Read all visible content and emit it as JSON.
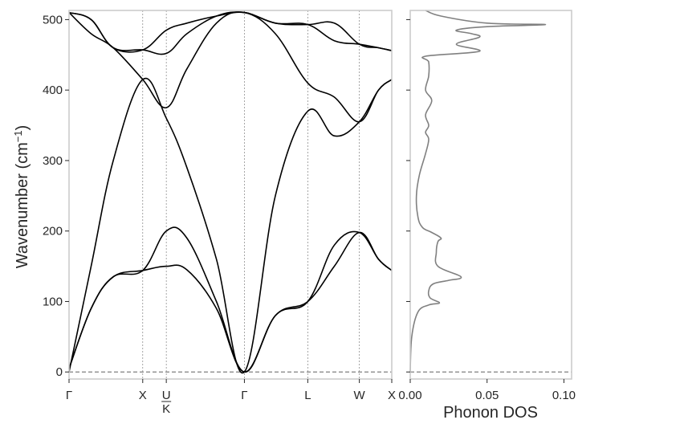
{
  "chart_data": [
    {
      "type": "line",
      "ylabel": "Wavenumber (cm⁻¹)",
      "ylim": [
        -10,
        513
      ],
      "yticks": [
        0,
        100,
        200,
        300,
        400,
        500
      ],
      "grid": false,
      "high_symmetry_points": [
        {
          "label": "Γ",
          "x": 0
        },
        {
          "label": "X",
          "x": 1
        },
        {
          "label": "U|K",
          "x": 1.32
        },
        {
          "label": "Γ",
          "x": 2.38
        },
        {
          "label": "L",
          "x": 3.24
        },
        {
          "label": "W",
          "x": 3.94
        },
        {
          "label": "X",
          "x": 4.38
        }
      ],
      "reference_line_y": 0,
      "bands": [
        {
          "points": [
            [
              0,
              5
            ],
            [
              0.3,
              90
            ],
            [
              0.6,
              135
            ],
            [
              1,
              144
            ],
            [
              1.32,
              200
            ],
            [
              1.6,
              190
            ],
            [
              2.0,
              100
            ],
            [
              2.38,
              0
            ],
            [
              2.8,
              80
            ],
            [
              3.24,
              100
            ],
            [
              3.6,
              180
            ],
            [
              3.94,
              198
            ],
            [
              4.2,
              160
            ],
            [
              4.38,
              144
            ]
          ]
        },
        {
          "points": [
            [
              0,
              5
            ],
            [
              0.3,
              90
            ],
            [
              0.6,
              135
            ],
            [
              1,
              144
            ],
            [
              1.32,
              150
            ],
            [
              1.6,
              145
            ],
            [
              2.0,
              90
            ],
            [
              2.38,
              0
            ],
            [
              2.8,
              80
            ],
            [
              3.24,
              100
            ],
            [
              3.6,
              150
            ],
            [
              3.94,
              198
            ],
            [
              4.2,
              160
            ],
            [
              4.38,
              144
            ]
          ]
        },
        {
          "points": [
            [
              0,
              0
            ],
            [
              0.3,
              150
            ],
            [
              0.6,
              300
            ],
            [
              1,
              415
            ],
            [
              1.32,
              360
            ],
            [
              1.6,
              290
            ],
            [
              2.0,
              160
            ],
            [
              2.38,
              0
            ],
            [
              2.8,
              250
            ],
            [
              3.24,
              370
            ],
            [
              3.6,
              335
            ],
            [
              3.94,
              355
            ],
            [
              4.2,
              400
            ],
            [
              4.38,
              415
            ]
          ]
        },
        {
          "points": [
            [
              0,
              510
            ],
            [
              0.3,
              480
            ],
            [
              0.6,
              460
            ],
            [
              1,
              415
            ],
            [
              1.32,
              375
            ],
            [
              1.6,
              430
            ],
            [
              2.0,
              495
            ],
            [
              2.38,
              510
            ],
            [
              2.8,
              480
            ],
            [
              3.24,
              410
            ],
            [
              3.6,
              390
            ],
            [
              3.94,
              355
            ],
            [
              4.2,
              400
            ],
            [
              4.38,
              415
            ]
          ]
        },
        {
          "points": [
            [
              0,
              510
            ],
            [
              0.3,
              500
            ],
            [
              0.6,
              460
            ],
            [
              1,
              457
            ],
            [
              1.32,
              452
            ],
            [
              1.6,
              480
            ],
            [
              2.0,
              505
            ],
            [
              2.38,
              510
            ],
            [
              2.8,
              495
            ],
            [
              3.24,
              493
            ],
            [
              3.6,
              470
            ],
            [
              3.94,
              465
            ],
            [
              4.2,
              460
            ],
            [
              4.38,
              456
            ]
          ]
        },
        {
          "points": [
            [
              0,
              510
            ],
            [
              0.3,
              500
            ],
            [
              0.6,
              460
            ],
            [
              1,
              457
            ],
            [
              1.32,
              485
            ],
            [
              1.6,
              495
            ],
            [
              2.0,
              505
            ],
            [
              2.38,
              510
            ],
            [
              2.8,
              495
            ],
            [
              3.24,
              493
            ],
            [
              3.6,
              495
            ],
            [
              3.94,
              465
            ],
            [
              4.2,
              460
            ],
            [
              4.38,
              456
            ]
          ]
        }
      ]
    },
    {
      "type": "line",
      "xlabel": "Phonon DOS",
      "xlim": [
        0,
        0.105
      ],
      "xticks": [
        0.0,
        0.05,
        0.1
      ],
      "xtick_labels": [
        "0.00",
        "0.05",
        "0.10"
      ],
      "ylim": [
        -10,
        513
      ],
      "grid": false,
      "reference_line_y": 0,
      "series": [
        {
          "color": "#808080",
          "points": [
            [
              0,
              0
            ],
            [
              0.001,
              50
            ],
            [
              0.005,
              85
            ],
            [
              0.012,
              95
            ],
            [
              0.019,
              98
            ],
            [
              0.013,
              105
            ],
            [
              0.012,
              115
            ],
            [
              0.015,
              125
            ],
            [
              0.025,
              130
            ],
            [
              0.033,
              135
            ],
            [
              0.018,
              150
            ],
            [
              0.017,
              170
            ],
            [
              0.018,
              185
            ],
            [
              0.02,
              190
            ],
            [
              0.014,
              198
            ],
            [
              0.008,
              205
            ],
            [
              0.005,
              220
            ],
            [
              0.004,
              250
            ],
            [
              0.006,
              280
            ],
            [
              0.01,
              310
            ],
            [
              0.012,
              330
            ],
            [
              0.01,
              340
            ],
            [
              0.012,
              350
            ],
            [
              0.01,
              365
            ],
            [
              0.014,
              385
            ],
            [
              0.01,
              400
            ],
            [
              0.012,
              420
            ],
            [
              0.012,
              440
            ],
            [
              0.01,
              448
            ],
            [
              0.045,
              455
            ],
            [
              0.03,
              465
            ],
            [
              0.045,
              475
            ],
            [
              0.04,
              480
            ],
            [
              0.03,
              485
            ],
            [
              0.05,
              490
            ],
            [
              0.088,
              493
            ],
            [
              0.05,
              495
            ],
            [
              0.02,
              505
            ],
            [
              0.01,
              513
            ]
          ]
        }
      ]
    }
  ]
}
